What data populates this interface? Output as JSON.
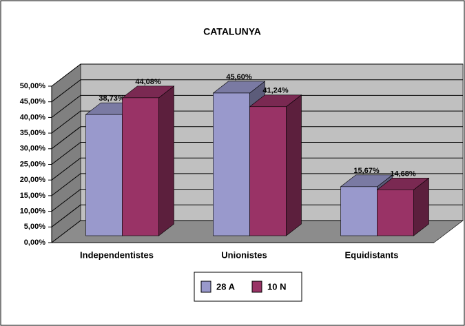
{
  "chart_data": {
    "type": "bar3d",
    "title": "CATALUNYA",
    "categories": [
      "Independentistes",
      "Unionistes",
      "Equidistants"
    ],
    "series": [
      {
        "name": "28 A",
        "color": "#9999cc",
        "values": [
          38.73,
          45.6,
          15.67
        ],
        "value_labels": [
          "38,73%",
          "45,60%",
          "15,67%"
        ]
      },
      {
        "name": "10 N",
        "color": "#993366",
        "values": [
          44.08,
          41.24,
          14.68
        ],
        "value_labels": [
          "44,08%",
          "41,24%",
          "14,68%"
        ]
      }
    ],
    "ylim": [
      0,
      50
    ],
    "yticks": [
      {
        "value": 0,
        "label": "0,00%"
      },
      {
        "value": 5,
        "label": "5,00%"
      },
      {
        "value": 10,
        "label": "10,00%"
      },
      {
        "value": 15,
        "label": "15,00%"
      },
      {
        "value": 20,
        "label": "20,00%"
      },
      {
        "value": 25,
        "label": "25,00%"
      },
      {
        "value": 30,
        "label": "30,00%"
      },
      {
        "value": 35,
        "label": "35,00%"
      },
      {
        "value": 40,
        "label": "40,00%"
      },
      {
        "value": 45,
        "label": "45,00%"
      },
      {
        "value": 50,
        "label": "50,00%"
      }
    ],
    "grid": true,
    "legend": "bottom"
  }
}
